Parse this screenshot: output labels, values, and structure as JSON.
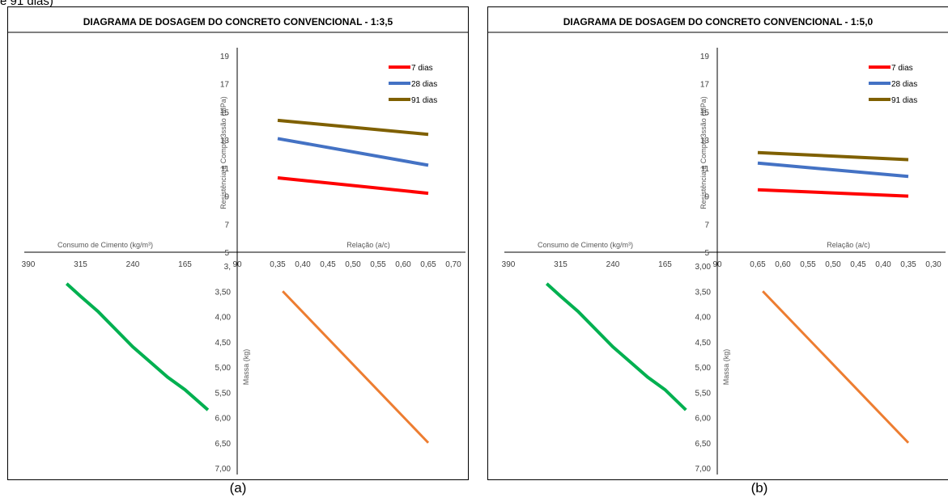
{
  "top_caption": "e 91 dias)",
  "chart_data": [
    {
      "type": "line",
      "panel": "a",
      "title": "DIAGRAMA DE DOSAGEM DO CONCRETO CONVENCIONAL - 1:3,5",
      "caption": "(a)",
      "quadrant_1": {
        "xlabel": "Relação (a/c)",
        "ylabel": "Resistência à Compre3ssão (MPa)",
        "x_ticks": [
          "0,35",
          "0,40",
          "0,45",
          "0,50",
          "0,55",
          "0,60",
          "0,65",
          "0,70"
        ],
        "xlim": [
          0.35,
          0.7
        ],
        "y_ticks": [
          "5",
          "7",
          "9",
          "11",
          "13",
          "15",
          "17",
          "19"
        ],
        "ylim": [
          5,
          19
        ],
        "legend_position": "top-right",
        "series": [
          {
            "name": "7 dias",
            "color": "#ff0000",
            "x": [
              0.35,
              0.65
            ],
            "y": [
              10.3,
              9.2
            ]
          },
          {
            "name": "28 dias",
            "color": "#4472c4",
            "x": [
              0.35,
              0.65
            ],
            "y": [
              13.1,
              11.2
            ]
          },
          {
            "name": "91 dias",
            "color": "#7f6000",
            "x": [
              0.35,
              0.65
            ],
            "y": [
              14.4,
              13.4
            ]
          }
        ]
      },
      "quadrant_4": {
        "ylabel": "Massa (kg)",
        "y_ticks": [
          "3,",
          "3,50",
          "4,00",
          "4,50",
          "5,00",
          "5,50",
          "6,00",
          "6,50",
          "7,00"
        ],
        "ylim": [
          3.0,
          7.0
        ],
        "series": [
          {
            "color": "#ed7d31",
            "x": [
              0.36,
              0.65
            ],
            "y": [
              3.5,
              6.5
            ]
          }
        ]
      },
      "quadrant_2": {
        "xlabel": "Consumo de Cimento (kg/m³)",
        "x_ticks": [
          "390",
          "315",
          "240",
          "165",
          "90"
        ],
        "xlim": [
          390,
          90
        ]
      },
      "quadrant_3": {
        "series": [
          {
            "color": "#00b050",
            "x": [
              335,
              315,
              290,
              265,
              240,
              215,
              190,
              165,
              132
            ],
            "y": [
              3.35,
              3.6,
              3.9,
              4.25,
              4.6,
              4.9,
              5.2,
              5.45,
              5.85
            ]
          }
        ]
      }
    },
    {
      "type": "line",
      "panel": "b",
      "title": "DIAGRAMA DE DOSAGEM DO CONCRETO CONVENCIONAL - 1:5,0",
      "caption": "(b)",
      "quadrant_1": {
        "xlabel": "Relação (a/c)",
        "ylabel": "Resistência à Compre3ssão (MPa)",
        "x_ticks": [
          "0,65",
          "0,60",
          "0,55",
          "0,50",
          "0,45",
          "0,40",
          "0,35",
          "0,30"
        ],
        "xlim": [
          0.65,
          0.3
        ],
        "y_ticks": [
          "5",
          "7",
          "9",
          "11",
          "13",
          "15",
          "17",
          "19"
        ],
        "ylim": [
          5,
          19
        ],
        "legend_position": "top-right",
        "series": [
          {
            "name": "7 dias",
            "color": "#ff0000",
            "x": [
              0.65,
              0.35
            ],
            "y": [
              9.45,
              9.0
            ]
          },
          {
            "name": "28 dias",
            "color": "#4472c4",
            "x": [
              0.65,
              0.35
            ],
            "y": [
              11.35,
              10.4
            ]
          },
          {
            "name": "91 dias",
            "color": "#7f6000",
            "x": [
              0.65,
              0.35
            ],
            "y": [
              12.1,
              11.6
            ]
          }
        ]
      },
      "quadrant_4": {
        "ylabel": "Massa (kg)",
        "y_ticks": [
          "3,00",
          "3,50",
          "4,00",
          "4,50",
          "5,00",
          "5,50",
          "6,00",
          "6,50",
          "7,00"
        ],
        "ylim": [
          3.0,
          7.0
        ],
        "series": [
          {
            "color": "#ed7d31",
            "x": [
              0.64,
              0.35
            ],
            "y": [
              3.5,
              6.5
            ]
          }
        ]
      },
      "quadrant_2": {
        "xlabel": "Consumo de Cimento (kg/m³)",
        "x_ticks": [
          "390",
          "315",
          "240",
          "165",
          "90"
        ],
        "xlim": [
          390,
          90
        ]
      },
      "quadrant_3": {
        "series": [
          {
            "color": "#00b050",
            "x": [
              335,
              315,
              290,
              265,
              240,
              215,
              190,
              165,
              135
            ],
            "y": [
              3.35,
              3.6,
              3.9,
              4.25,
              4.6,
              4.9,
              5.2,
              5.45,
              5.85
            ]
          }
        ]
      }
    }
  ]
}
